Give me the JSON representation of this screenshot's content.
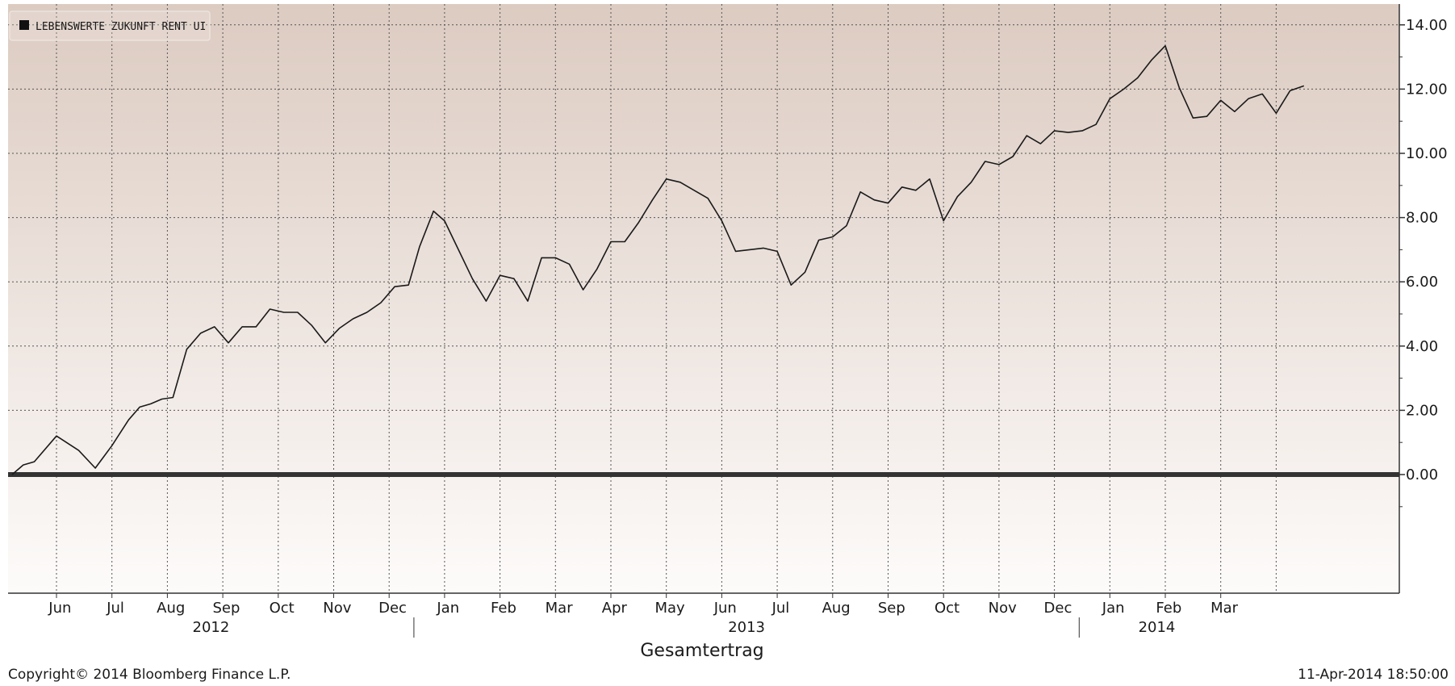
{
  "chart_data": {
    "type": "line",
    "title": "",
    "xlabel": "Gesamtertrag",
    "ylabel": "",
    "ylim": [
      -1.3,
      14.6
    ],
    "yticks": [
      0,
      2,
      4,
      6,
      8,
      10,
      12,
      14
    ],
    "ytick_labels": [
      "0.00",
      "2.00",
      "4.00",
      "6.00",
      "8.00",
      "10.00",
      "12.00",
      "14.00"
    ],
    "grid": true,
    "legend_position": "top-left",
    "x_units": "months since 2012-05-01",
    "xlim": [
      0.2,
      22.8
    ],
    "months": [
      {
        "label": "Jun",
        "start": 1,
        "end": 2
      },
      {
        "label": "Jul",
        "start": 2,
        "end": 3
      },
      {
        "label": "Aug",
        "start": 3,
        "end": 4
      },
      {
        "label": "Sep",
        "start": 4,
        "end": 5
      },
      {
        "label": "Oct",
        "start": 5,
        "end": 6
      },
      {
        "label": "Nov",
        "start": 6,
        "end": 7
      },
      {
        "label": "Dec",
        "start": 7,
        "end": 8
      },
      {
        "label": "Jan",
        "start": 8,
        "end": 9
      },
      {
        "label": "Feb",
        "start": 9,
        "end": 10
      },
      {
        "label": "Mar",
        "start": 10,
        "end": 11
      },
      {
        "label": "Apr",
        "start": 11,
        "end": 12
      },
      {
        "label": "May",
        "start": 12,
        "end": 13
      },
      {
        "label": "Jun",
        "start": 13,
        "end": 14
      },
      {
        "label": "Jul",
        "start": 14,
        "end": 15
      },
      {
        "label": "Aug",
        "start": 15,
        "end": 16
      },
      {
        "label": "Sep",
        "start": 16,
        "end": 17
      },
      {
        "label": "Oct",
        "start": 17,
        "end": 18
      },
      {
        "label": "Nov",
        "start": 18,
        "end": 19
      },
      {
        "label": "Dec",
        "start": 19,
        "end": 20
      },
      {
        "label": "Jan",
        "start": 20,
        "end": 21
      },
      {
        "label": "Feb",
        "start": 21,
        "end": 22
      },
      {
        "label": "Mar",
        "start": 22,
        "end": 23
      }
    ],
    "years": [
      {
        "label": "2012",
        "start": 0.2,
        "end": 8
      },
      {
        "label": "2013",
        "start": 8,
        "end": 20
      },
      {
        "label": "2014",
        "start": 20,
        "end": 22.8
      }
    ],
    "year_dividers": [
      8,
      20
    ],
    "colors": {
      "line": "#1a1a1a",
      "zero_line": "#333333",
      "bg_top": "#dccbc1",
      "bg_bottom": "#fdfbfa",
      "grid": "#555555"
    },
    "series": [
      {
        "name": "LEBENSWERTE ZUKUNFT RENT UI",
        "points": [
          [
            0.2,
            0.0
          ],
          [
            0.4,
            0.3
          ],
          [
            0.6,
            0.4
          ],
          [
            1.0,
            1.2
          ],
          [
            1.4,
            0.75
          ],
          [
            1.7,
            0.2
          ],
          [
            2.0,
            0.9
          ],
          [
            2.3,
            1.7
          ],
          [
            2.5,
            2.1
          ],
          [
            2.7,
            2.2
          ],
          [
            2.9,
            2.35
          ],
          [
            3.1,
            2.4
          ],
          [
            3.35,
            3.9
          ],
          [
            3.6,
            4.4
          ],
          [
            3.85,
            4.6
          ],
          [
            4.1,
            4.1
          ],
          [
            4.35,
            4.6
          ],
          [
            4.6,
            4.6
          ],
          [
            4.85,
            5.15
          ],
          [
            5.1,
            5.05
          ],
          [
            5.35,
            5.05
          ],
          [
            5.6,
            4.65
          ],
          [
            5.85,
            4.1
          ],
          [
            6.1,
            4.55
          ],
          [
            6.35,
            4.85
          ],
          [
            6.6,
            5.05
          ],
          [
            6.85,
            5.35
          ],
          [
            7.1,
            5.85
          ],
          [
            7.35,
            5.9
          ],
          [
            7.55,
            7.1
          ],
          [
            7.8,
            8.2
          ],
          [
            8.0,
            7.9
          ],
          [
            8.25,
            7.0
          ],
          [
            8.5,
            6.1
          ],
          [
            8.75,
            5.4
          ],
          [
            9.0,
            6.2
          ],
          [
            9.25,
            6.1
          ],
          [
            9.5,
            5.4
          ],
          [
            9.75,
            6.75
          ],
          [
            10.0,
            6.75
          ],
          [
            10.25,
            6.55
          ],
          [
            10.5,
            5.75
          ],
          [
            10.75,
            6.4
          ],
          [
            11.0,
            7.25
          ],
          [
            11.25,
            7.25
          ],
          [
            11.5,
            7.85
          ],
          [
            11.75,
            8.55
          ],
          [
            12.0,
            9.2
          ],
          [
            12.25,
            9.1
          ],
          [
            12.5,
            8.85
          ],
          [
            12.75,
            8.6
          ],
          [
            13.0,
            7.9
          ],
          [
            13.25,
            6.95
          ],
          [
            13.5,
            7.0
          ],
          [
            13.75,
            7.05
          ],
          [
            14.0,
            6.95
          ],
          [
            14.25,
            5.9
          ],
          [
            14.5,
            6.3
          ],
          [
            14.75,
            7.3
          ],
          [
            15.0,
            7.4
          ],
          [
            15.25,
            7.75
          ],
          [
            15.5,
            8.8
          ],
          [
            15.75,
            8.55
          ],
          [
            16.0,
            8.45
          ],
          [
            16.25,
            8.95
          ],
          [
            16.5,
            8.85
          ],
          [
            16.75,
            9.2
          ],
          [
            17.0,
            7.9
          ],
          [
            17.25,
            8.65
          ],
          [
            17.5,
            9.1
          ],
          [
            17.75,
            9.75
          ],
          [
            18.0,
            9.65
          ],
          [
            18.25,
            9.9
          ],
          [
            18.5,
            10.55
          ],
          [
            18.75,
            10.3
          ],
          [
            19.0,
            10.7
          ],
          [
            19.25,
            10.65
          ],
          [
            19.5,
            10.7
          ],
          [
            19.75,
            10.9
          ],
          [
            20.0,
            11.7
          ],
          [
            20.25,
            12.0
          ],
          [
            20.5,
            12.35
          ],
          [
            20.75,
            12.9
          ],
          [
            21.0,
            13.35
          ],
          [
            21.25,
            12.05
          ],
          [
            21.5,
            11.1
          ],
          [
            21.75,
            11.15
          ],
          [
            22.0,
            11.65
          ],
          [
            22.25,
            11.3
          ],
          [
            22.5,
            11.7
          ],
          [
            22.75,
            11.85
          ],
          [
            23.0,
            11.25
          ],
          [
            23.25,
            11.95
          ],
          [
            23.5,
            12.1
          ]
        ]
      }
    ]
  },
  "footer": {
    "copyright": "Copyright© 2014 Bloomberg Finance L.P.",
    "timestamp": "11-Apr-2014 18:50:00"
  }
}
